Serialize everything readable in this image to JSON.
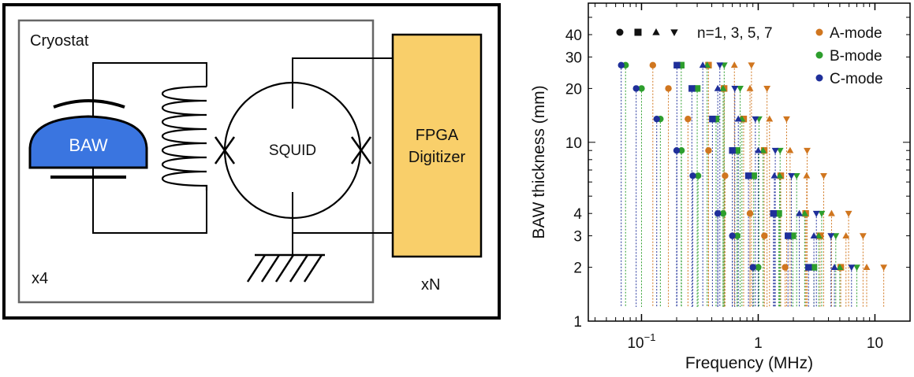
{
  "circuit": {
    "cryostat_label": "Cryostat",
    "baw_label": "BAW",
    "squid_label": "SQUID",
    "fpga_label_line1": "FPGA",
    "fpga_label_line2": "Digitizer",
    "count_inner": "x4",
    "count_outer": "xN",
    "colors": {
      "baw": "#3a75e0",
      "fpga": "#f9cf6a"
    }
  },
  "chart_data": {
    "type": "scatter",
    "xscale": "log",
    "yscale": "log",
    "xlim": [
      0.035,
      20
    ],
    "ylim": [
      1,
      60
    ],
    "xlabel": "Frequency (MHz)",
    "ylabel": "BAW thickness (mm)",
    "x_ticks": [
      {
        "value": 0.1,
        "base": "10",
        "exp": "−1"
      },
      {
        "value": 1,
        "base": "1",
        "exp": ""
      },
      {
        "value": 10,
        "base": "10",
        "exp": ""
      }
    ],
    "y_ticks": [
      1,
      2,
      3,
      4,
      10,
      20,
      30,
      40
    ],
    "harmonics_legend": "n=1, 3, 5, 7",
    "harmonics": [
      1,
      3,
      5,
      7
    ],
    "markers": [
      "circle",
      "square",
      "triangle-up",
      "triangle-down"
    ],
    "thicknesses": [
      27,
      20,
      13.5,
      9,
      6.5,
      4,
      3,
      2
    ],
    "series": [
      {
        "name": "A-mode",
        "color": "#d0761f",
        "fundamentals": [
          0.125,
          0.17,
          0.25,
          0.375,
          0.52,
          0.85,
          1.13,
          1.7
        ]
      },
      {
        "name": "B-mode",
        "color": "#2d9e2d",
        "fundamentals": [
          0.073,
          0.1,
          0.145,
          0.22,
          0.305,
          0.5,
          0.66,
          1.0
        ]
      },
      {
        "name": "C-mode",
        "color": "#1f2f9a",
        "fundamentals": [
          0.067,
          0.09,
          0.135,
          0.2,
          0.275,
          0.45,
          0.6,
          0.9
        ]
      }
    ],
    "legend_position": "top-right"
  }
}
